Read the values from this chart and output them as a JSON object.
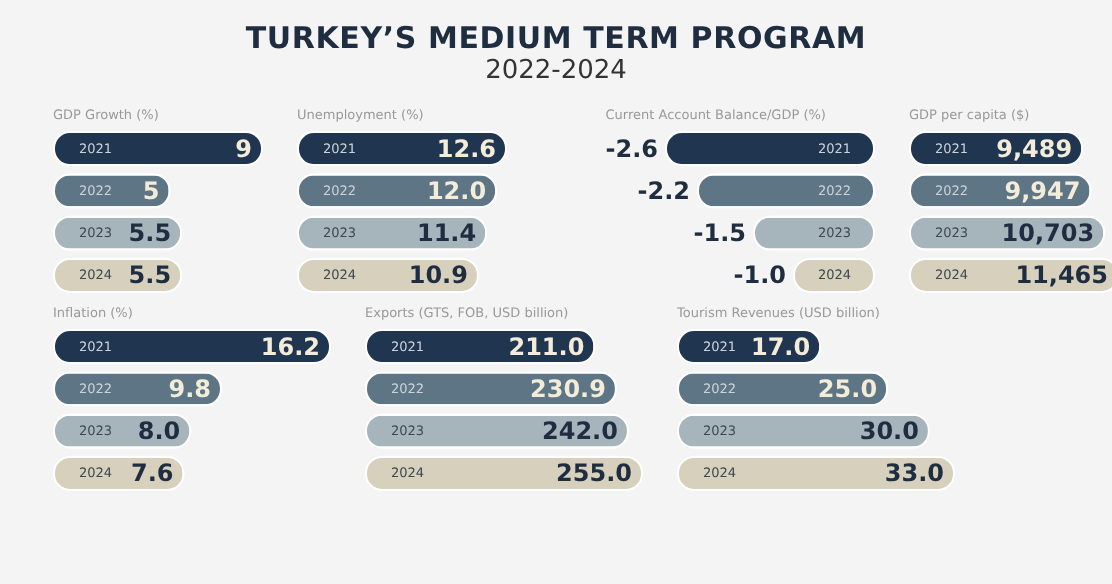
{
  "chart_data": [
    {
      "type": "other",
      "title": "TURKEY’S MEDIUM TERM PROGRAM",
      "subtitle": "2022-2024"
    },
    {
      "type": "bar",
      "orientation": "horizontal",
      "title": "GDP Growth (%)",
      "categories": [
        "2021",
        "2022",
        "2023",
        "2024"
      ],
      "values": [
        9,
        5,
        5.5,
        5.5
      ],
      "value_labels": [
        "9",
        "5",
        "5.5",
        "5.5"
      ],
      "colors": [
        "#1f3550",
        "#5d7584",
        "#a6b5bc",
        "#d6d0bd"
      ]
    },
    {
      "type": "bar",
      "orientation": "horizontal",
      "title": "Unemployment (%)",
      "categories": [
        "2021",
        "2022",
        "2023",
        "2024"
      ],
      "values": [
        12.6,
        12.0,
        11.4,
        10.9
      ],
      "value_labels": [
        "12.6",
        "12.0",
        "11.4",
        "10.9"
      ],
      "colors": [
        "#1f3550",
        "#5d7584",
        "#a6b5bc",
        "#d6d0bd"
      ]
    },
    {
      "type": "bar",
      "orientation": "horizontal",
      "title": "Current Account Balance/GDP (%)",
      "categories": [
        "2021",
        "2022",
        "2023",
        "2024"
      ],
      "values": [
        -2.6,
        -2.2,
        -1.5,
        -1.0
      ],
      "value_labels": [
        "-2.6",
        "-2.2",
        "-1.5",
        "-1.0"
      ],
      "colors": [
        "#1f3550",
        "#5d7584",
        "#a6b5bc",
        "#d6d0bd"
      ]
    },
    {
      "type": "bar",
      "orientation": "horizontal",
      "title": "GDP per capita ($)",
      "categories": [
        "2021",
        "2022",
        "2023",
        "2024"
      ],
      "values": [
        9489,
        9947,
        10703,
        11465
      ],
      "value_labels": [
        "9,489",
        "9,947",
        "10,703",
        "11,465"
      ],
      "colors": [
        "#1f3550",
        "#5d7584",
        "#a6b5bc",
        "#d6d0bd"
      ]
    },
    {
      "type": "bar",
      "orientation": "horizontal",
      "title": "Inflation (%)",
      "categories": [
        "2021",
        "2022",
        "2023",
        "2024"
      ],
      "values": [
        16.2,
        9.8,
        8.0,
        7.6
      ],
      "value_labels": [
        "16.2",
        "9.8",
        "8.0",
        "7.6"
      ],
      "colors": [
        "#1f3550",
        "#5d7584",
        "#a6b5bc",
        "#d6d0bd"
      ]
    },
    {
      "type": "bar",
      "orientation": "horizontal",
      "title": "Exports (GTS, FOB, USD billion)",
      "categories": [
        "2021",
        "2022",
        "2023",
        "2024"
      ],
      "values": [
        211.0,
        230.9,
        242.0,
        255.0
      ],
      "value_labels": [
        "211.0",
        "230.9",
        "242.0",
        "255.0"
      ],
      "colors": [
        "#1f3550",
        "#5d7584",
        "#a6b5bc",
        "#d6d0bd"
      ]
    },
    {
      "type": "bar",
      "orientation": "horizontal",
      "title": "Tourism Revenues (USD billion)",
      "categories": [
        "2021",
        "2022",
        "2023",
        "2024"
      ],
      "values": [
        17.0,
        25.0,
        30.0,
        33.0
      ],
      "value_labels": [
        "17.0",
        "25.0",
        "30.0",
        "33.0"
      ],
      "colors": [
        "#1f3550",
        "#5d7584",
        "#a6b5bc",
        "#d6d0bd"
      ]
    }
  ]
}
